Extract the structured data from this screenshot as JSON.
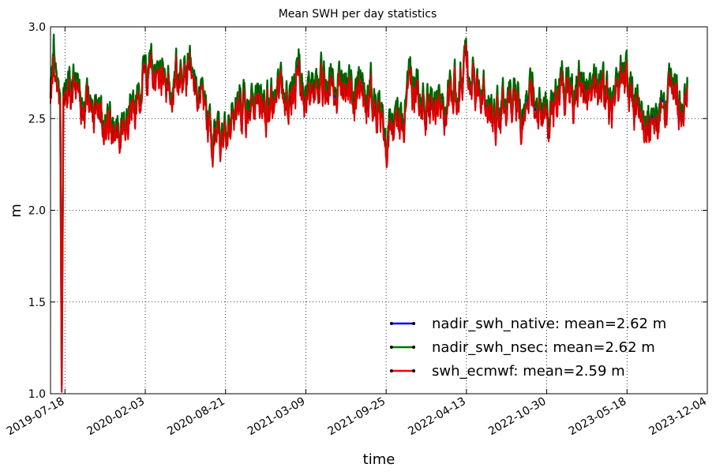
{
  "chart_data": {
    "type": "line",
    "title": "Mean SWH per day statistics",
    "xlabel": "time",
    "ylabel": "m",
    "ylim": [
      1.0,
      3.0
    ],
    "xlim": [
      "2019-06-12",
      "2023-12-04"
    ],
    "grid": true,
    "legend_position": "lower-right",
    "x_ticks": [
      "2019-07-18",
      "2020-02-03",
      "2020-08-21",
      "2021-03-09",
      "2021-09-25",
      "2022-04-13",
      "2022-10-30",
      "2023-05-18",
      "2023-12-04"
    ],
    "y_ticks": [
      "1.0",
      "1.5",
      "2.0",
      "2.5",
      "3.0"
    ],
    "x_start": "2019-06-12",
    "x_end": "2023-10-15",
    "series": [
      {
        "name": "nadir_swh_native",
        "legend": "nadir_swh_native: mean=2.62 m",
        "color": "#0000ff",
        "mean": 2.62,
        "anchors": [
          [
            "2019-06-12",
            2.65
          ],
          [
            "2019-06-20",
            2.82
          ],
          [
            "2019-06-28",
            2.55
          ],
          [
            "2019-07-06",
            2.62
          ],
          [
            "2019-07-10",
            1.05
          ],
          [
            "2019-07-14",
            2.6
          ],
          [
            "2019-07-26",
            2.78
          ],
          [
            "2019-08-15",
            2.58
          ],
          [
            "2019-09-20",
            2.52
          ],
          [
            "2019-11-01",
            2.48
          ],
          [
            "2019-12-15",
            2.55
          ],
          [
            "2020-01-20",
            2.68
          ],
          [
            "2020-02-15",
            2.82
          ],
          [
            "2020-03-20",
            2.7
          ],
          [
            "2020-04-25",
            2.72
          ],
          [
            "2020-05-30",
            2.75
          ],
          [
            "2020-07-01",
            2.55
          ],
          [
            "2020-08-10",
            2.47
          ],
          [
            "2020-09-15",
            2.55
          ],
          [
            "2020-10-20",
            2.6
          ],
          [
            "2020-11-25",
            2.55
          ],
          [
            "2021-01-01",
            2.62
          ],
          [
            "2021-02-10",
            2.7
          ],
          [
            "2021-03-20",
            2.68
          ],
          [
            "2021-04-25",
            2.7
          ],
          [
            "2021-06-01",
            2.72
          ],
          [
            "2021-07-10",
            2.65
          ],
          [
            "2021-08-20",
            2.6
          ],
          [
            "2021-09-25",
            2.45
          ],
          [
            "2021-11-01",
            2.6
          ],
          [
            "2021-12-10",
            2.66
          ],
          [
            "2022-01-15",
            2.55
          ],
          [
            "2022-02-20",
            2.6
          ],
          [
            "2022-04-01",
            2.76
          ],
          [
            "2022-05-10",
            2.75
          ],
          [
            "2022-06-20",
            2.55
          ],
          [
            "2022-08-01",
            2.52
          ],
          [
            "2022-09-10",
            2.6
          ],
          [
            "2022-10-20",
            2.58
          ],
          [
            "2022-12-01",
            2.62
          ],
          [
            "2023-01-10",
            2.7
          ],
          [
            "2023-02-20",
            2.68
          ],
          [
            "2023-04-01",
            2.62
          ],
          [
            "2023-05-15",
            2.7
          ],
          [
            "2023-06-20",
            2.55
          ],
          [
            "2023-08-01",
            2.5
          ],
          [
            "2023-09-01",
            2.55
          ],
          [
            "2023-10-15",
            2.65
          ]
        ]
      },
      {
        "name": "nadir_swh_nsec",
        "legend": "nadir_swh_nsec: mean=2.62 m",
        "color": "#007700",
        "mean": 2.62,
        "anchors": [
          [
            "2019-06-12",
            2.66
          ],
          [
            "2019-06-20",
            2.84
          ],
          [
            "2019-06-28",
            2.56
          ],
          [
            "2019-07-06",
            2.63
          ],
          [
            "2019-07-10",
            1.05
          ],
          [
            "2019-07-14",
            2.61
          ],
          [
            "2019-07-26",
            2.79
          ],
          [
            "2019-08-15",
            2.6
          ],
          [
            "2019-09-20",
            2.53
          ],
          [
            "2019-11-01",
            2.49
          ],
          [
            "2019-12-15",
            2.56
          ],
          [
            "2020-01-20",
            2.69
          ],
          [
            "2020-02-15",
            2.83
          ],
          [
            "2020-03-20",
            2.71
          ],
          [
            "2020-04-25",
            2.73
          ],
          [
            "2020-05-30",
            2.76
          ],
          [
            "2020-07-01",
            2.56
          ],
          [
            "2020-08-10",
            2.48
          ],
          [
            "2020-09-15",
            2.56
          ],
          [
            "2020-10-20",
            2.62
          ],
          [
            "2020-11-25",
            2.57
          ],
          [
            "2021-01-01",
            2.63
          ],
          [
            "2021-02-10",
            2.72
          ],
          [
            "2021-03-20",
            2.7
          ],
          [
            "2021-04-25",
            2.72
          ],
          [
            "2021-06-01",
            2.74
          ],
          [
            "2021-07-10",
            2.67
          ],
          [
            "2021-08-20",
            2.62
          ],
          [
            "2021-09-25",
            2.46
          ],
          [
            "2021-11-01",
            2.62
          ],
          [
            "2021-12-10",
            2.68
          ],
          [
            "2022-01-15",
            2.57
          ],
          [
            "2022-02-20",
            2.62
          ],
          [
            "2022-04-01",
            2.77
          ],
          [
            "2022-05-10",
            2.76
          ],
          [
            "2022-06-20",
            2.57
          ],
          [
            "2022-08-01",
            2.54
          ],
          [
            "2022-09-10",
            2.62
          ],
          [
            "2022-10-20",
            2.6
          ],
          [
            "2022-12-01",
            2.64
          ],
          [
            "2023-01-10",
            2.72
          ],
          [
            "2023-02-20",
            2.7
          ],
          [
            "2023-04-01",
            2.64
          ],
          [
            "2023-05-15",
            2.72
          ],
          [
            "2023-06-20",
            2.57
          ],
          [
            "2023-08-01",
            2.52
          ],
          [
            "2023-09-01",
            2.57
          ],
          [
            "2023-10-15",
            2.67
          ]
        ]
      },
      {
        "name": "swh_ecmwf",
        "legend": "swh_ecmwf: mean=2.59 m",
        "color": "#ff0000",
        "mean": 2.59,
        "anchors": [
          [
            "2019-06-12",
            2.62
          ],
          [
            "2019-06-20",
            2.72
          ],
          [
            "2019-06-28",
            2.52
          ],
          [
            "2019-07-06",
            2.58
          ],
          [
            "2019-07-10",
            1.01
          ],
          [
            "2019-07-14",
            2.56
          ],
          [
            "2019-07-26",
            2.72
          ],
          [
            "2019-08-15",
            2.55
          ],
          [
            "2019-09-20",
            2.5
          ],
          [
            "2019-11-01",
            2.45
          ],
          [
            "2019-12-15",
            2.52
          ],
          [
            "2020-01-20",
            2.64
          ],
          [
            "2020-02-15",
            2.78
          ],
          [
            "2020-03-20",
            2.67
          ],
          [
            "2020-04-25",
            2.69
          ],
          [
            "2020-05-30",
            2.72
          ],
          [
            "2020-07-01",
            2.52
          ],
          [
            "2020-08-10",
            2.43
          ],
          [
            "2020-09-15",
            2.52
          ],
          [
            "2020-10-20",
            2.56
          ],
          [
            "2020-11-25",
            2.52
          ],
          [
            "2021-01-01",
            2.59
          ],
          [
            "2021-02-10",
            2.66
          ],
          [
            "2021-03-20",
            2.64
          ],
          [
            "2021-04-25",
            2.66
          ],
          [
            "2021-06-01",
            2.68
          ],
          [
            "2021-07-10",
            2.61
          ],
          [
            "2021-08-20",
            2.56
          ],
          [
            "2021-09-25",
            2.41
          ],
          [
            "2021-11-01",
            2.56
          ],
          [
            "2021-12-10",
            2.62
          ],
          [
            "2022-01-15",
            2.52
          ],
          [
            "2022-02-20",
            2.57
          ],
          [
            "2022-04-01",
            2.74
          ],
          [
            "2022-05-10",
            2.73
          ],
          [
            "2022-06-20",
            2.52
          ],
          [
            "2022-08-01",
            2.49
          ],
          [
            "2022-09-10",
            2.56
          ],
          [
            "2022-10-20",
            2.54
          ],
          [
            "2022-12-01",
            2.59
          ],
          [
            "2023-01-10",
            2.66
          ],
          [
            "2023-02-20",
            2.64
          ],
          [
            "2023-04-01",
            2.59
          ],
          [
            "2023-05-15",
            2.66
          ],
          [
            "2023-06-20",
            2.52
          ],
          [
            "2023-08-01",
            2.46
          ],
          [
            "2023-09-01",
            2.52
          ],
          [
            "2023-10-15",
            2.62
          ]
        ]
      }
    ]
  }
}
